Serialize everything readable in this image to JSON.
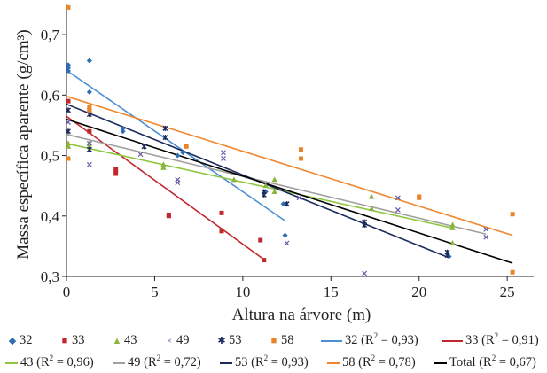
{
  "chart_data": {
    "type": "scatter",
    "xlabel": "Altura na árvore (m)",
    "ylabel": "Massa específica aparente (g/cm³)",
    "xlim": [
      0,
      26.5
    ],
    "ylim": [
      0.3,
      0.75
    ],
    "xticks": [
      "0",
      "5",
      "10",
      "15",
      "20",
      "25"
    ],
    "yticks": [
      "0,3",
      "0,4",
      "0,5",
      "0,6",
      "0,7"
    ],
    "grid": false,
    "legend_position": "bottom",
    "series": [
      {
        "name": "32",
        "color": "#2e6db4",
        "marker": "diamond",
        "points": [
          [
            0.1,
            0.645
          ],
          [
            0.1,
            0.64
          ],
          [
            0.1,
            0.65
          ],
          [
            1.3,
            0.657
          ],
          [
            1.3,
            0.605
          ],
          [
            3.2,
            0.54
          ],
          [
            3.2,
            0.545
          ],
          [
            6.3,
            0.5
          ],
          [
            6.6,
            0.505
          ],
          [
            11.3,
            0.44
          ],
          [
            12.3,
            0.42
          ],
          [
            12.4,
            0.368
          ],
          [
            21.7,
            0.333
          ]
        ]
      },
      {
        "name": "33",
        "color": "#c0282e",
        "marker": "square",
        "points": [
          [
            0.1,
            0.59
          ],
          [
            1.3,
            0.575
          ],
          [
            1.3,
            0.54
          ],
          [
            2.8,
            0.477
          ],
          [
            2.8,
            0.47
          ],
          [
            5.8,
            0.402
          ],
          [
            5.8,
            0.4
          ],
          [
            8.8,
            0.405
          ],
          [
            8.8,
            0.375
          ],
          [
            11.0,
            0.36
          ],
          [
            11.2,
            0.327
          ]
        ]
      },
      {
        "name": "43",
        "color": "#8ab43c",
        "marker": "triangle",
        "points": [
          [
            0.1,
            0.52
          ],
          [
            0.1,
            0.515
          ],
          [
            1.3,
            0.52
          ],
          [
            1.3,
            0.515
          ],
          [
            5.5,
            0.485
          ],
          [
            5.5,
            0.48
          ],
          [
            9.5,
            0.46
          ],
          [
            11.3,
            0.45
          ],
          [
            11.8,
            0.46
          ],
          [
            11.8,
            0.44
          ],
          [
            17.3,
            0.432
          ],
          [
            17.3,
            0.412
          ],
          [
            21.9,
            0.385
          ],
          [
            21.9,
            0.38
          ],
          [
            21.9,
            0.355
          ]
        ]
      },
      {
        "name": "49",
        "color": "#6a5aa8",
        "marker": "x",
        "points": [
          [
            0.1,
            0.555
          ],
          [
            1.3,
            0.485
          ],
          [
            1.3,
            0.52
          ],
          [
            4.2,
            0.502
          ],
          [
            6.3,
            0.46
          ],
          [
            6.3,
            0.455
          ],
          [
            8.9,
            0.495
          ],
          [
            8.9,
            0.505
          ],
          [
            12.5,
            0.355
          ],
          [
            13.2,
            0.43
          ],
          [
            16.9,
            0.305
          ],
          [
            18.8,
            0.43
          ],
          [
            18.8,
            0.41
          ],
          [
            23.8,
            0.365
          ],
          [
            23.8,
            0.378
          ]
        ]
      },
      {
        "name": "53",
        "color": "#1c2a5c",
        "marker": "asterisk",
        "points": [
          [
            0.1,
            0.54
          ],
          [
            0.1,
            0.575
          ],
          [
            1.3,
            0.568
          ],
          [
            1.3,
            0.51
          ],
          [
            4.4,
            0.515
          ],
          [
            5.6,
            0.53
          ],
          [
            5.6,
            0.545
          ],
          [
            11.2,
            0.44
          ],
          [
            11.2,
            0.435
          ],
          [
            12.5,
            0.42
          ],
          [
            16.9,
            0.39
          ],
          [
            16.9,
            0.385
          ],
          [
            21.6,
            0.34
          ],
          [
            21.6,
            0.335
          ]
        ]
      },
      {
        "name": "58",
        "color": "#e8852a",
        "marker": "square",
        "points": [
          [
            0.1,
            0.745
          ],
          [
            0.1,
            0.495
          ],
          [
            1.3,
            0.58
          ],
          [
            1.3,
            0.575
          ],
          [
            6.8,
            0.515
          ],
          [
            13.3,
            0.51
          ],
          [
            13.3,
            0.495
          ],
          [
            20.0,
            0.43
          ],
          [
            20.0,
            0.432
          ],
          [
            25.3,
            0.403
          ],
          [
            25.3,
            0.307
          ]
        ]
      }
    ],
    "trendlines": [
      {
        "name": "32 (R² = 0,93)",
        "color": "#4a8fd4",
        "x": [
          0,
          12.4
        ],
        "y": [
          0.641,
          0.392
        ]
      },
      {
        "name": "33 (R² = 0,91)",
        "color": "#c0282e",
        "x": [
          0,
          11.2
        ],
        "y": [
          0.565,
          0.328
        ]
      },
      {
        "name": "43 (R² = 0,96)",
        "color": "#8dc63f",
        "x": [
          0,
          21.9
        ],
        "y": [
          0.52,
          0.38
        ]
      },
      {
        "name": "49 (R² = 0,72)",
        "color": "#a0a0a0",
        "x": [
          0,
          23.8
        ],
        "y": [
          0.535,
          0.37
        ]
      },
      {
        "name": "53 (R² = 0,93)",
        "color": "#1c2a5c",
        "x": [
          0,
          21.6
        ],
        "y": [
          0.585,
          0.332
        ]
      },
      {
        "name": "58 (R² = 0,78)",
        "color": "#f0872e",
        "x": [
          0,
          25.3
        ],
        "y": [
          0.598,
          0.368
        ]
      },
      {
        "name": "Total (R² = 0,67)",
        "color": "#000000",
        "x": [
          0,
          25.3
        ],
        "y": [
          0.56,
          0.322
        ]
      }
    ]
  },
  "legend": {
    "row1": [
      {
        "label": "32",
        "color": "#2e6db4",
        "symbol": "◆"
      },
      {
        "label": "33",
        "color": "#c0282e",
        "symbol": "■"
      },
      {
        "label": "43",
        "color": "#8ab43c",
        "symbol": "▲"
      },
      {
        "label": "49",
        "color": "#6a5aa8",
        "symbol": "×"
      },
      {
        "label": "53",
        "color": "#1c2a5c",
        "symbol": "✱"
      },
      {
        "label": "58",
        "color": "#e8852a",
        "symbol": "■"
      },
      {
        "label": "32 (R",
        "r2": " = 0,93)",
        "color": "#4a8fd4",
        "line": true
      },
      {
        "label": "33 (R",
        "r2": " = 0,91)",
        "color": "#c0282e",
        "line": true
      }
    ],
    "row2": [
      {
        "label": "43 (R",
        "r2": " = 0,96)",
        "color": "#8dc63f"
      },
      {
        "label": "49 (R",
        "r2": " = 0,72)",
        "color": "#a0a0a0"
      },
      {
        "label": "53 (R",
        "r2": " = 0,93)",
        "color": "#1c2a5c"
      },
      {
        "label": "58 (R",
        "r2": " = 0,78)",
        "color": "#f0872e"
      },
      {
        "label": "Total (R",
        "r2": " = 0,67)",
        "color": "#000000"
      }
    ],
    "superscript": "2"
  }
}
